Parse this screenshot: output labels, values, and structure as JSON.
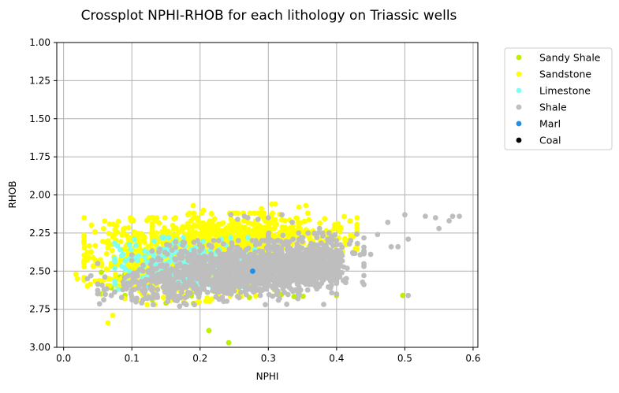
{
  "chart_data": {
    "type": "scatter",
    "title": "Crossplot NPHI-RHOB for each lithology on Triassic wells",
    "xlabel": "NPHI",
    "ylabel": "RHOB",
    "xlim": [
      -0.01,
      0.607
    ],
    "ylim": [
      3.0,
      1.0
    ],
    "y_inverted": true,
    "grid": true,
    "legend_position": "outside right",
    "x_ticks": [
      {
        "value": 0.0,
        "label": "0.0"
      },
      {
        "value": 0.1,
        "label": "0.1"
      },
      {
        "value": 0.2,
        "label": "0.2"
      },
      {
        "value": 0.3,
        "label": "0.3"
      },
      {
        "value": 0.4,
        "label": "0.4"
      },
      {
        "value": 0.5,
        "label": "0.5"
      },
      {
        "value": 0.6,
        "label": "0.6"
      }
    ],
    "y_ticks": [
      {
        "value": 1.0,
        "label": "1.00"
      },
      {
        "value": 1.25,
        "label": "1.25"
      },
      {
        "value": 1.5,
        "label": "1.50"
      },
      {
        "value": 1.75,
        "label": "1.75"
      },
      {
        "value": 2.0,
        "label": "2.00"
      },
      {
        "value": 2.25,
        "label": "2.25"
      },
      {
        "value": 2.5,
        "label": "2.50"
      },
      {
        "value": 2.75,
        "label": "2.75"
      },
      {
        "value": 3.0,
        "label": "3.00"
      }
    ],
    "series": [
      {
        "name": "Sandy Shale",
        "color": "#bfef00",
        "points": [
          [
            0.213,
            2.89
          ],
          [
            0.242,
            2.97
          ],
          [
            0.497,
            2.66
          ],
          [
            0.4,
            2.66
          ],
          [
            0.395,
            2.47
          ],
          [
            0.15,
            2.71
          ],
          [
            0.13,
            2.69
          ],
          [
            0.09,
            2.66
          ],
          [
            0.07,
            2.61
          ],
          [
            0.33,
            2.58
          ],
          [
            0.36,
            2.42
          ]
        ],
        "clouds": [
          {
            "n": 60,
            "cx": 0.22,
            "cy": 2.55,
            "sx": 0.08,
            "sy": 0.08,
            "x": [
              0.02,
              0.42
            ],
            "y": [
              2.2,
              2.72
            ]
          }
        ]
      },
      {
        "name": "Sandstone",
        "color": "#ffff00",
        "points": [
          [
            0.018,
            2.52
          ],
          [
            0.02,
            2.55
          ],
          [
            0.035,
            2.6
          ],
          [
            0.05,
            2.58
          ],
          [
            0.062,
            2.31
          ],
          [
            0.065,
            2.84
          ],
          [
            0.072,
            2.79
          ],
          [
            0.075,
            2.26
          ],
          [
            0.085,
            2.4
          ],
          [
            0.095,
            2.29
          ],
          [
            0.135,
            2.17
          ],
          [
            0.16,
            2.2
          ],
          [
            0.182,
            2.13
          ],
          [
            0.19,
            2.07
          ],
          [
            0.205,
            2.1
          ],
          [
            0.305,
            2.06
          ],
          [
            0.31,
            2.06
          ],
          [
            0.355,
            2.07
          ],
          [
            0.345,
            2.08
          ],
          [
            0.42,
            2.17
          ],
          [
            0.43,
            2.15
          ],
          [
            0.415,
            2.32
          ],
          [
            0.29,
            2.09
          ],
          [
            0.252,
            2.12
          ]
        ],
        "clouds": [
          {
            "n": 900,
            "cx": 0.16,
            "cy": 2.42,
            "sx": 0.06,
            "sy": 0.12,
            "x": [
              0.03,
              0.3
            ],
            "y": [
              2.15,
              2.72
            ]
          },
          {
            "n": 500,
            "cx": 0.28,
            "cy": 2.27,
            "sx": 0.07,
            "sy": 0.07,
            "x": [
              0.13,
              0.43
            ],
            "y": [
              2.12,
              2.5
            ]
          }
        ]
      },
      {
        "name": "Limestone",
        "color": "#7ffff0",
        "points": [
          [
            0.08,
            2.62
          ],
          [
            0.09,
            2.56
          ],
          [
            0.11,
            2.5
          ],
          [
            0.12,
            2.6
          ],
          [
            0.27,
            2.28
          ]
        ],
        "clouds": [
          {
            "n": 250,
            "cx": 0.17,
            "cy": 2.44,
            "sx": 0.045,
            "sy": 0.08,
            "x": [
              0.075,
              0.28
            ],
            "y": [
              2.28,
              2.7
            ]
          }
        ]
      },
      {
        "name": "Shale",
        "color": "#bebebe",
        "points": [
          [
            0.245,
            2.13
          ],
          [
            0.255,
            2.16
          ],
          [
            0.265,
            2.14
          ],
          [
            0.27,
            2.15
          ],
          [
            0.285,
            2.16
          ],
          [
            0.3,
            2.15
          ],
          [
            0.32,
            2.13
          ],
          [
            0.335,
            2.18
          ],
          [
            0.375,
            2.22
          ],
          [
            0.38,
            2.27
          ],
          [
            0.46,
            2.26
          ],
          [
            0.475,
            2.18
          ],
          [
            0.5,
            2.13
          ],
          [
            0.505,
            2.29
          ],
          [
            0.53,
            2.14
          ],
          [
            0.545,
            2.15
          ],
          [
            0.55,
            2.22
          ],
          [
            0.565,
            2.17
          ],
          [
            0.57,
            2.14
          ],
          [
            0.58,
            2.14
          ],
          [
            0.49,
            2.34
          ],
          [
            0.48,
            2.34
          ],
          [
            0.505,
            2.66
          ],
          [
            0.4,
            2.65
          ],
          [
            0.035,
            2.55
          ],
          [
            0.04,
            2.53
          ],
          [
            0.07,
            2.66
          ],
          [
            0.17,
            2.73
          ],
          [
            0.44,
            2.37
          ],
          [
            0.45,
            2.39
          ]
        ],
        "clouds": [
          {
            "n": 1100,
            "cx": 0.27,
            "cy": 2.5,
            "sx": 0.07,
            "sy": 0.08,
            "x": [
              0.1,
              0.4
            ],
            "y": [
              2.3,
              2.72
            ]
          },
          {
            "n": 350,
            "cx": 0.36,
            "cy": 2.42,
            "sx": 0.04,
            "sy": 0.08,
            "x": [
              0.3,
              0.44
            ],
            "y": [
              2.25,
              2.68
            ]
          },
          {
            "n": 150,
            "cx": 0.14,
            "cy": 2.6,
            "sx": 0.05,
            "sy": 0.06,
            "x": [
              0.05,
              0.25
            ],
            "y": [
              2.45,
              2.72
            ]
          }
        ]
      },
      {
        "name": "Marl",
        "color": "#1f8fe8",
        "points": [
          [
            0.277,
            2.5
          ]
        ],
        "clouds": []
      },
      {
        "name": "Coal",
        "color": "#000000",
        "points": [],
        "clouds": []
      }
    ]
  }
}
